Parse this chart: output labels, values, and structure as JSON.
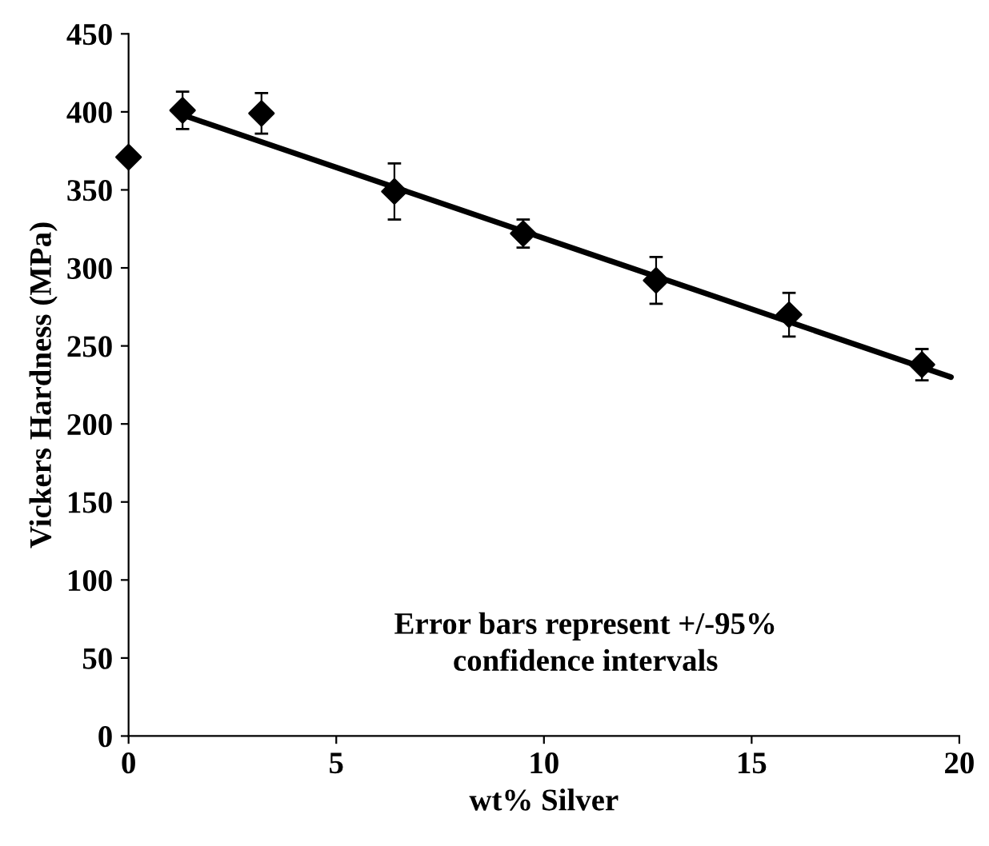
{
  "chart_data": {
    "type": "scatter",
    "xlabel": "wt% Silver",
    "ylabel": "Vickers Hardness (MPa)",
    "xlim": [
      0,
      20
    ],
    "ylim": [
      0,
      450
    ],
    "xticks": [
      0,
      5,
      10,
      15,
      20
    ],
    "yticks": [
      0,
      50,
      100,
      150,
      200,
      250,
      300,
      350,
      400,
      450
    ],
    "grid": false,
    "legend": false,
    "series": [
      {
        "marker": "diamond",
        "color": "#000000",
        "x": [
          0,
          1.3,
          3.2,
          6.4,
          9.5,
          12.7,
          15.9,
          19.1
        ],
        "values": [
          371,
          401,
          399,
          349,
          322,
          292,
          270,
          238
        ],
        "errors": [
          null,
          12,
          13,
          18,
          9,
          15,
          14,
          10
        ]
      },
      {
        "type": "line",
        "marker": "none",
        "color": "#000000",
        "x": [
          1.3,
          19.8
        ],
        "values": [
          398,
          230
        ]
      }
    ],
    "annotations": [
      "Error bars represent +/-95%\nconfidence intervals"
    ]
  }
}
